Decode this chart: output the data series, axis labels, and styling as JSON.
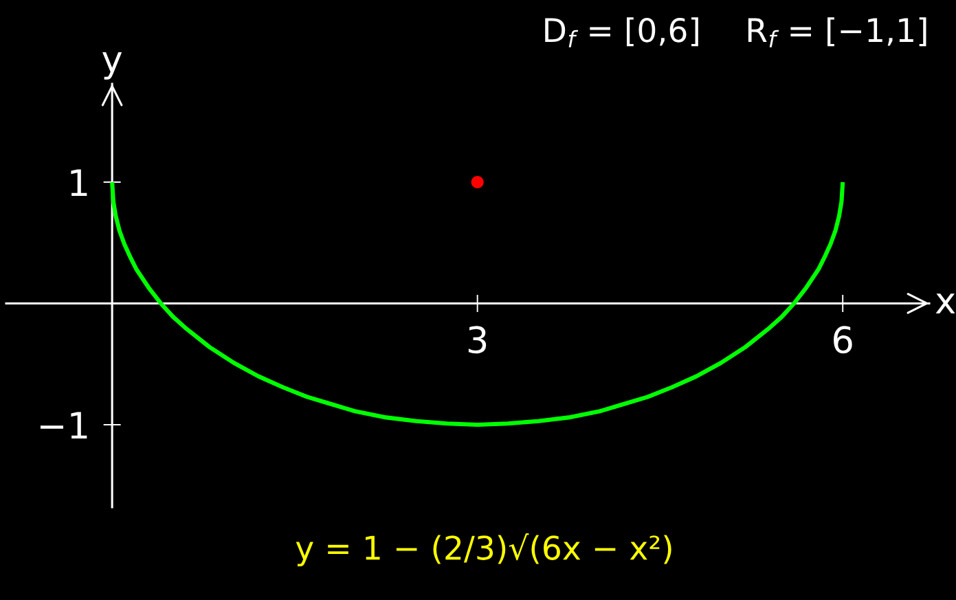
{
  "chart_data": {
    "type": "line",
    "xlabel": "x",
    "ylabel": "y",
    "xlim": [
      -0.87,
      6.71
    ],
    "ylim": [
      -1.68,
      1.81
    ],
    "xticks": [
      3,
      6
    ],
    "yticks": [
      1,
      {
        "value": -1,
        "label": "−1"
      }
    ],
    "series": [
      {
        "color": "#00ff00",
        "x": [
          0,
          0.01,
          0.03,
          0.06,
          0.1,
          0.15,
          0.2,
          0.3,
          0.4,
          0.5,
          0.6,
          0.8,
          1.0,
          1.2,
          1.4,
          1.6,
          1.8,
          2.0,
          2.25,
          2.5,
          2.75,
          3.0,
          3.25,
          3.5,
          3.75,
          4.0,
          4.2,
          4.4,
          4.6,
          4.8,
          5.0,
          5.2,
          5.4,
          5.5,
          5.6,
          5.7,
          5.8,
          5.85,
          5.9,
          5.94,
          5.97,
          5.99,
          6.0
        ],
        "values": [
          1,
          0.84,
          0.72,
          0.6,
          0.49,
          0.38,
          0.28,
          0.13,
          0,
          -0.11,
          -0.2,
          -0.36,
          -0.49,
          -0.6,
          -0.69,
          -0.77,
          -0.83,
          -0.89,
          -0.94,
          -0.97,
          -0.99,
          -1,
          -0.99,
          -0.97,
          -0.94,
          -0.89,
          -0.83,
          -0.77,
          -0.69,
          -0.6,
          -0.49,
          -0.36,
          -0.2,
          -0.11,
          0,
          0.13,
          0.28,
          0.38,
          0.49,
          0.6,
          0.72,
          0.84,
          1
        ]
      },
      {
        "type": "scatter",
        "color": "#ff0000",
        "marker": "circle",
        "x": [
          3
        ],
        "values": [
          1
        ]
      }
    ],
    "annotations": [
      "D$_{f}$ = [0,6]",
      "R$_{f}$ = [−1,1]",
      "y = 1 − (2/3)√(6x − x²)"
    ]
  }
}
